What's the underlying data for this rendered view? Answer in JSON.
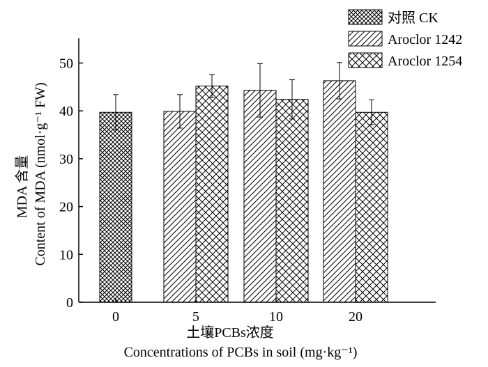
{
  "chart_data": {
    "type": "bar",
    "title": "",
    "xlabel_cn": "土壤PCBs浓度",
    "xlabel_en": "Concentrations of PCBs in soil (mg·kg⁻¹)",
    "ylabel_cn": "MDA 含量",
    "ylabel_en": "Content of MDA (nmol·g⁻¹ FW)",
    "categories": [
      "0",
      "5",
      "10",
      "20"
    ],
    "ylim": [
      0,
      55
    ],
    "yticks": [
      0,
      10,
      20,
      30,
      40,
      50
    ],
    "legend_position": "top-right",
    "grid": false,
    "series": [
      {
        "name": "对照 CK",
        "pattern": "crosshatch-dense",
        "values": [
          39.7,
          null,
          null,
          null
        ],
        "errors": [
          3.7,
          null,
          null,
          null
        ]
      },
      {
        "name": "Aroclor 1242",
        "pattern": "diagonal",
        "values": [
          null,
          39.9,
          44.3,
          46.3
        ],
        "errors": [
          null,
          3.5,
          5.6,
          3.8
        ]
      },
      {
        "name": "Aroclor 1254",
        "pattern": "crosshatch",
        "values": [
          null,
          45.2,
          42.4,
          39.7
        ],
        "errors": [
          null,
          2.4,
          4.1,
          2.6
        ]
      }
    ]
  }
}
